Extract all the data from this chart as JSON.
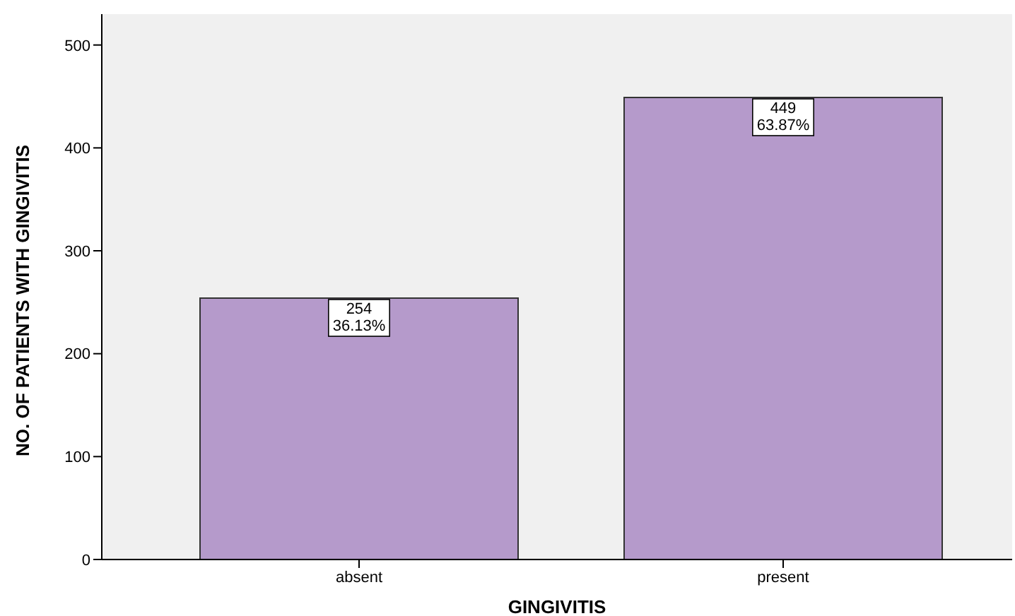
{
  "chart_data": {
    "type": "bar",
    "xlabel": "GINGIVITIS",
    "ylabel": "NO. OF PATIENTS WITH GINGIVITIS",
    "categories": [
      "absent",
      "present"
    ],
    "values": [
      254,
      449
    ],
    "value_labels": [
      "254\n36.13%",
      "449\n63.87%"
    ],
    "color": "#b59acb",
    "ylim": [
      0,
      530
    ],
    "yticks": [
      0,
      100,
      200,
      300,
      400,
      500
    ],
    "grid": false,
    "legend": false
  }
}
